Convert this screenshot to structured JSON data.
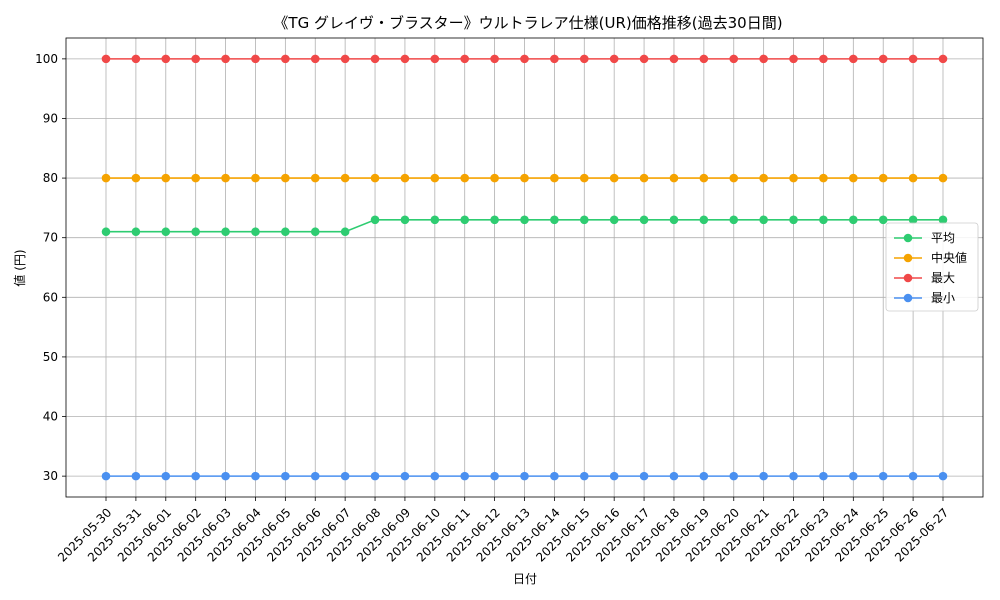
{
  "chart_data": {
    "type": "line",
    "title": "《TG グレイヴ・ブラスター》ウルトラレア仕様(UR)価格推移(過去30日間)",
    "xlabel": "日付",
    "ylabel": "値 (円)",
    "ylim": [
      26.5,
      103.5
    ],
    "yticks": [
      30,
      40,
      50,
      60,
      70,
      80,
      90,
      100
    ],
    "grid": true,
    "legend_position": "center-right",
    "categories": [
      "2025-05-30",
      "2025-05-31",
      "2025-06-01",
      "2025-06-02",
      "2025-06-03",
      "2025-06-04",
      "2025-06-05",
      "2025-06-06",
      "2025-06-07",
      "2025-06-08",
      "2025-06-09",
      "2025-06-10",
      "2025-06-11",
      "2025-06-12",
      "2025-06-13",
      "2025-06-14",
      "2025-06-15",
      "2025-06-16",
      "2025-06-17",
      "2025-06-18",
      "2025-06-19",
      "2025-06-20",
      "2025-06-21",
      "2025-06-22",
      "2025-06-23",
      "2025-06-24",
      "2025-06-25",
      "2025-06-26",
      "2025-06-27"
    ],
    "series": [
      {
        "name": "平均",
        "color": "#2ecc71",
        "values": [
          71,
          71,
          71,
          71,
          71,
          71,
          71,
          71,
          71,
          73,
          73,
          73,
          73,
          73,
          73,
          73,
          73,
          73,
          73,
          73,
          73,
          73,
          73,
          73,
          73,
          73,
          73,
          73,
          73
        ]
      },
      {
        "name": "中央値",
        "color": "#f5a300",
        "values": [
          80,
          80,
          80,
          80,
          80,
          80,
          80,
          80,
          80,
          80,
          80,
          80,
          80,
          80,
          80,
          80,
          80,
          80,
          80,
          80,
          80,
          80,
          80,
          80,
          80,
          80,
          80,
          80,
          80
        ]
      },
      {
        "name": "最大",
        "color": "#f04848",
        "values": [
          100,
          100,
          100,
          100,
          100,
          100,
          100,
          100,
          100,
          100,
          100,
          100,
          100,
          100,
          100,
          100,
          100,
          100,
          100,
          100,
          100,
          100,
          100,
          100,
          100,
          100,
          100,
          100,
          100
        ]
      },
      {
        "name": "最小",
        "color": "#4a90f0",
        "values": [
          30,
          30,
          30,
          30,
          30,
          30,
          30,
          30,
          30,
          30,
          30,
          30,
          30,
          30,
          30,
          30,
          30,
          30,
          30,
          30,
          30,
          30,
          30,
          30,
          30,
          30,
          30,
          30,
          30
        ]
      }
    ]
  }
}
